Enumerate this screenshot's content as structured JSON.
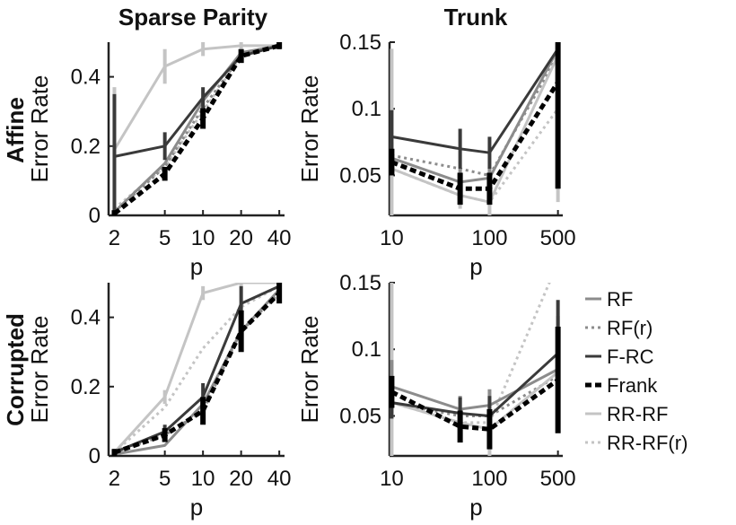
{
  "figure": {
    "col_titles": [
      "Sparse Parity",
      "Trunk"
    ],
    "row_labels": [
      "Affine",
      "Corrupted"
    ]
  },
  "colors": {
    "RF": "#8c8c8c",
    "RF(r)": "#8c8c8c",
    "F-RC": "#3a3a3a",
    "Frank": "#000000",
    "RR-RF": "#c4c4c4",
    "RR-RF(r)": "#c4c4c4"
  },
  "legend": {
    "placement": "right",
    "entries": [
      {
        "name": "RF",
        "style": "solid"
      },
      {
        "name": "RF(r)",
        "style": "dotted"
      },
      {
        "name": "F-RC",
        "style": "solid"
      },
      {
        "name": "Frank",
        "style": "dashed"
      },
      {
        "name": "RR-RF",
        "style": "solid"
      },
      {
        "name": "RR-RF(r)",
        "style": "dotted"
      }
    ]
  },
  "chart_data": [
    {
      "type": "line",
      "title": "Sparse Parity",
      "xlabel": "p",
      "ylabel": "Error Rate",
      "x": [
        2,
        5,
        10,
        20,
        40
      ],
      "xscale": "log",
      "xticks": [
        2,
        5,
        10,
        20,
        40
      ],
      "xlim": [
        1.8,
        44
      ],
      "ylim": [
        0,
        0.5
      ],
      "yticks": [
        0,
        0.2,
        0.4
      ],
      "ytick_labels": [
        "0",
        "0.2",
        "0.4"
      ],
      "grid": false,
      "series": [
        {
          "name": "RF",
          "values": [
            0.01,
            0.15,
            0.33,
            0.47,
            0.49
          ]
        },
        {
          "name": "RF(r)",
          "values": [
            0.01,
            0.14,
            0.31,
            0.46,
            0.49
          ]
        },
        {
          "name": "F-RC",
          "values": [
            0.17,
            0.2,
            0.34,
            0.46,
            0.49
          ],
          "err": [
            0.18,
            0.04,
            0.03,
            0.01,
            0.01
          ]
        },
        {
          "name": "Frank",
          "values": [
            0.005,
            0.12,
            0.28,
            0.46,
            0.49
          ],
          "err": [
            0.01,
            0.02,
            0.03,
            0.02,
            0.01
          ]
        },
        {
          "name": "RR-RF",
          "values": [
            0.19,
            0.43,
            0.48,
            0.49,
            0.49
          ],
          "err": [
            0.18,
            0.05,
            0.02,
            0.01,
            0.01
          ]
        },
        {
          "name": "RR-RF(r)",
          "values": [
            0.02,
            0.14,
            0.3,
            0.46,
            0.49
          ]
        }
      ]
    },
    {
      "type": "line",
      "title": "Trunk",
      "xlabel": "p",
      "ylabel": "Error Rate",
      "x": [
        10,
        50,
        100,
        500
      ],
      "xscale": "log",
      "xticks": [
        10,
        100,
        500
      ],
      "xlim": [
        9.5,
        560
      ],
      "ylim": [
        0.02,
        0.15
      ],
      "yticks": [
        0.05,
        0.1,
        0.15
      ],
      "ytick_labels": [
        "0.05",
        "0.1",
        "0.15"
      ],
      "grid": false,
      "series": [
        {
          "name": "RF",
          "values": [
            0.063,
            0.045,
            0.048,
            0.145
          ],
          "err": [
            0.012,
            0.01,
            0.008,
            0.03
          ]
        },
        {
          "name": "RF(r)",
          "values": [
            0.065,
            0.055,
            0.05,
            0.14
          ]
        },
        {
          "name": "F-RC",
          "values": [
            0.079,
            0.07,
            0.067,
            0.145
          ],
          "err": [
            0.02,
            0.015,
            0.012,
            0.03
          ]
        },
        {
          "name": "Frank",
          "values": [
            0.06,
            0.04,
            0.04,
            0.12
          ],
          "err": [
            0.01,
            0.012,
            0.012,
            0.08
          ]
        },
        {
          "name": "RR-RF",
          "values": [
            0.055,
            0.035,
            0.03,
            0.14
          ],
          "err": [
            0.09,
            0.01,
            0.012,
            0.11
          ]
        },
        {
          "name": "RR-RF(r)",
          "values": [
            0.055,
            0.035,
            0.03,
            0.1
          ]
        }
      ]
    },
    {
      "type": "line",
      "title": "",
      "xlabel": "p",
      "ylabel": "Error Rate",
      "x": [
        2,
        5,
        10,
        20,
        40
      ],
      "xscale": "log",
      "xticks": [
        2,
        5,
        10,
        20,
        40
      ],
      "xlim": [
        1.8,
        44
      ],
      "ylim": [
        0,
        0.5
      ],
      "yticks": [
        0,
        0.2,
        0.4
      ],
      "ytick_labels": [
        "0",
        "0.2",
        "0.4"
      ],
      "grid": false,
      "series": [
        {
          "name": "RF",
          "values": [
            0.005,
            0.03,
            0.15,
            0.36,
            0.48
          ]
        },
        {
          "name": "RF(r)",
          "values": [
            0.01,
            0.06,
            0.13,
            0.36,
            0.47
          ]
        },
        {
          "name": "F-RC",
          "values": [
            0.01,
            0.07,
            0.17,
            0.44,
            0.49
          ],
          "err": [
            0.01,
            0.02,
            0.04,
            0.05,
            0.02
          ]
        },
        {
          "name": "Frank",
          "values": [
            0.01,
            0.06,
            0.13,
            0.36,
            0.47
          ],
          "err": [
            0.01,
            0.02,
            0.04,
            0.06,
            0.03
          ]
        },
        {
          "name": "RR-RF",
          "values": [
            0.01,
            0.17,
            0.47,
            0.5,
            0.5
          ],
          "err": [
            0.01,
            0.02,
            0.02,
            0.01,
            0.01
          ]
        },
        {
          "name": "RR-RF(r)",
          "values": [
            0.01,
            0.14,
            0.31,
            0.43,
            0.49
          ]
        }
      ]
    },
    {
      "type": "line",
      "title": "",
      "xlabel": "p",
      "ylabel": "Error Rate",
      "x": [
        10,
        50,
        100,
        500
      ],
      "xscale": "log",
      "xticks": [
        10,
        100,
        500
      ],
      "xlim": [
        9.5,
        560
      ],
      "ylim": [
        0.02,
        0.15
      ],
      "yticks": [
        0.05,
        0.1,
        0.15
      ],
      "ytick_labels": [
        "0.05",
        "0.1",
        "0.15"
      ],
      "grid": false,
      "series": [
        {
          "name": "RF",
          "values": [
            0.072,
            0.055,
            0.058,
            0.085
          ],
          "err": [
            0.02,
            0.01,
            0.012,
            0.04
          ]
        },
        {
          "name": "RF(r)",
          "values": [
            0.06,
            0.05,
            0.05,
            0.08
          ]
        },
        {
          "name": "F-RC",
          "values": [
            0.06,
            0.052,
            0.05,
            0.097
          ],
          "err": [
            0.012,
            0.012,
            0.015,
            0.04
          ]
        },
        {
          "name": "Frank",
          "values": [
            0.068,
            0.042,
            0.04,
            0.077
          ],
          "err": [
            0.012,
            0.012,
            0.015,
            0.04
          ]
        },
        {
          "name": "RR-RF",
          "values": [
            0.06,
            0.045,
            0.04,
            0.083
          ],
          "err": [
            0.09,
            0.01,
            0.02,
            0.02
          ]
        },
        {
          "name": "RR-RF(r)",
          "values": [
            0.06,
            0.045,
            0.045,
            0.165
          ]
        }
      ]
    }
  ]
}
